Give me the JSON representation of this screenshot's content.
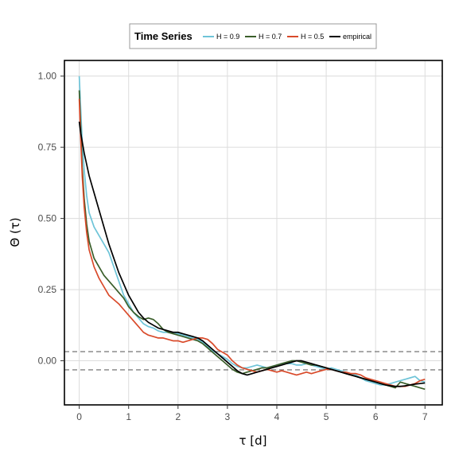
{
  "chart_data": {
    "type": "line",
    "xlabel": "τ [d]",
    "ylabel": "Θ (τ)",
    "xlim": [
      -0.3,
      7.35
    ],
    "ylim": [
      -0.155,
      1.055
    ],
    "x_ticks": [
      0,
      1,
      2,
      3,
      4,
      5,
      6,
      7
    ],
    "y_ticks": [
      0.0,
      0.25,
      0.5,
      0.75,
      1.0
    ],
    "x_tick_labels": [
      "0",
      "1",
      "2",
      "3",
      "4",
      "5",
      "6",
      "7"
    ],
    "y_tick_labels": [
      "0.00",
      "0.25",
      "0.50",
      "0.75",
      "1.00"
    ],
    "grid": true,
    "legend": {
      "title": "Time Series",
      "placement": "top-center, outside plot"
    },
    "reference_lines": [
      {
        "y": 0.032,
        "style": "dashed",
        "color": "#808080"
      },
      {
        "y": -0.032,
        "style": "dashed",
        "color": "#808080"
      }
    ],
    "series": [
      {
        "name": "H = 0.9",
        "color": "#6ec4d8",
        "x": [
          0,
          0.03,
          0.06,
          0.1,
          0.15,
          0.2,
          0.3,
          0.4,
          0.5,
          0.6,
          0.7,
          0.8,
          0.9,
          1.0,
          1.1,
          1.2,
          1.3,
          1.4,
          1.5,
          1.6,
          1.7,
          1.8,
          1.9,
          2.0,
          2.1,
          2.2,
          2.3,
          2.4,
          2.5,
          2.6,
          2.7,
          2.8,
          2.9,
          3.0,
          3.1,
          3.2,
          3.3,
          3.4,
          3.5,
          3.6,
          3.7,
          3.8,
          3.9,
          4.0,
          4.1,
          4.2,
          4.3,
          4.4,
          4.5,
          4.6,
          4.7,
          4.8,
          4.9,
          5.0,
          5.1,
          5.2,
          5.3,
          5.4,
          5.5,
          5.6,
          5.7,
          5.8,
          5.9,
          6.0,
          6.1,
          6.2,
          6.3,
          6.4,
          6.5,
          6.6,
          6.7,
          6.8,
          6.9,
          7.0
        ],
        "values": [
          1.0,
          0.88,
          0.77,
          0.67,
          0.58,
          0.52,
          0.47,
          0.44,
          0.41,
          0.38,
          0.33,
          0.28,
          0.23,
          0.2,
          0.17,
          0.15,
          0.13,
          0.12,
          0.115,
          0.105,
          0.1,
          0.1,
          0.1,
          0.095,
          0.09,
          0.085,
          0.08,
          0.075,
          0.065,
          0.05,
          0.035,
          0.025,
          0.015,
          0.005,
          -0.01,
          -0.02,
          -0.025,
          -0.025,
          -0.02,
          -0.015,
          -0.02,
          -0.025,
          -0.02,
          -0.015,
          -0.01,
          -0.01,
          -0.01,
          -0.015,
          -0.015,
          -0.01,
          -0.015,
          -0.02,
          -0.025,
          -0.03,
          -0.025,
          -0.03,
          -0.035,
          -0.04,
          -0.045,
          -0.05,
          -0.06,
          -0.07,
          -0.075,
          -0.08,
          -0.085,
          -0.085,
          -0.08,
          -0.075,
          -0.07,
          -0.065,
          -0.06,
          -0.055,
          -0.07,
          -0.075
        ]
      },
      {
        "name": "H = 0.7",
        "color": "#3a5e2a",
        "x": [
          0,
          0.03,
          0.06,
          0.1,
          0.15,
          0.2,
          0.3,
          0.4,
          0.5,
          0.6,
          0.7,
          0.8,
          0.9,
          1.0,
          1.1,
          1.2,
          1.3,
          1.4,
          1.5,
          1.6,
          1.7,
          1.8,
          1.9,
          2.0,
          2.1,
          2.2,
          2.3,
          2.4,
          2.5,
          2.6,
          2.7,
          2.8,
          2.9,
          3.0,
          3.1,
          3.2,
          3.3,
          3.4,
          3.5,
          3.6,
          3.7,
          3.8,
          3.9,
          4.0,
          4.1,
          4.2,
          4.3,
          4.4,
          4.5,
          4.6,
          4.7,
          4.8,
          4.9,
          5.0,
          5.1,
          5.2,
          5.3,
          5.4,
          5.5,
          5.6,
          5.7,
          5.8,
          5.9,
          6.0,
          6.1,
          6.2,
          6.3,
          6.4,
          6.5,
          6.6,
          6.7,
          6.8,
          6.9,
          7.0
        ],
        "values": [
          0.95,
          0.82,
          0.68,
          0.57,
          0.48,
          0.42,
          0.36,
          0.33,
          0.3,
          0.28,
          0.26,
          0.24,
          0.22,
          0.19,
          0.17,
          0.155,
          0.145,
          0.15,
          0.145,
          0.13,
          0.11,
          0.1,
          0.095,
          0.09,
          0.085,
          0.08,
          0.075,
          0.07,
          0.06,
          0.045,
          0.03,
          0.015,
          0.0,
          -0.015,
          -0.03,
          -0.04,
          -0.045,
          -0.04,
          -0.035,
          -0.03,
          -0.025,
          -0.025,
          -0.02,
          -0.015,
          -0.01,
          -0.005,
          0.0,
          0.0,
          -0.005,
          -0.01,
          -0.015,
          -0.015,
          -0.02,
          -0.025,
          -0.03,
          -0.035,
          -0.04,
          -0.045,
          -0.05,
          -0.055,
          -0.06,
          -0.065,
          -0.07,
          -0.075,
          -0.08,
          -0.085,
          -0.09,
          -0.095,
          -0.075,
          -0.08,
          -0.085,
          -0.09,
          -0.095,
          -0.1
        ]
      },
      {
        "name": "H = 0.5",
        "color": "#d94a2a",
        "x": [
          0,
          0.03,
          0.06,
          0.1,
          0.15,
          0.2,
          0.3,
          0.4,
          0.5,
          0.6,
          0.7,
          0.8,
          0.9,
          1.0,
          1.1,
          1.2,
          1.3,
          1.4,
          1.5,
          1.6,
          1.7,
          1.8,
          1.9,
          2.0,
          2.1,
          2.2,
          2.3,
          2.4,
          2.5,
          2.6,
          2.7,
          2.8,
          2.9,
          3.0,
          3.1,
          3.2,
          3.3,
          3.4,
          3.5,
          3.6,
          3.7,
          3.8,
          3.9,
          4.0,
          4.1,
          4.2,
          4.3,
          4.4,
          4.5,
          4.6,
          4.7,
          4.8,
          4.9,
          5.0,
          5.1,
          5.2,
          5.3,
          5.4,
          5.5,
          5.6,
          5.7,
          5.8,
          5.9,
          6.0,
          6.1,
          6.2,
          6.3,
          6.4,
          6.5,
          6.6,
          6.7,
          6.8,
          6.9,
          7.0
        ],
        "values": [
          0.92,
          0.78,
          0.65,
          0.54,
          0.45,
          0.39,
          0.33,
          0.29,
          0.26,
          0.23,
          0.215,
          0.2,
          0.18,
          0.16,
          0.14,
          0.12,
          0.1,
          0.09,
          0.085,
          0.08,
          0.08,
          0.075,
          0.07,
          0.07,
          0.065,
          0.07,
          0.075,
          0.08,
          0.08,
          0.075,
          0.06,
          0.04,
          0.03,
          0.02,
          0.0,
          -0.015,
          -0.025,
          -0.03,
          -0.035,
          -0.04,
          -0.035,
          -0.03,
          -0.035,
          -0.04,
          -0.035,
          -0.04,
          -0.045,
          -0.05,
          -0.045,
          -0.04,
          -0.045,
          -0.04,
          -0.035,
          -0.03,
          -0.03,
          -0.035,
          -0.04,
          -0.04,
          -0.045,
          -0.045,
          -0.05,
          -0.06,
          -0.065,
          -0.07,
          -0.075,
          -0.08,
          -0.085,
          -0.09,
          -0.09,
          -0.09,
          -0.085,
          -0.08,
          -0.07,
          -0.065
        ]
      },
      {
        "name": "empirical",
        "color": "#000000",
        "x": [
          0,
          0.03,
          0.06,
          0.1,
          0.15,
          0.2,
          0.3,
          0.4,
          0.5,
          0.6,
          0.7,
          0.8,
          0.9,
          1.0,
          1.1,
          1.2,
          1.3,
          1.4,
          1.5,
          1.6,
          1.7,
          1.8,
          1.9,
          2.0,
          2.1,
          2.2,
          2.3,
          2.4,
          2.5,
          2.6,
          2.7,
          2.8,
          2.9,
          3.0,
          3.1,
          3.2,
          3.3,
          3.4,
          3.5,
          3.6,
          3.7,
          3.8,
          3.9,
          4.0,
          4.1,
          4.2,
          4.3,
          4.4,
          4.5,
          4.6,
          4.7,
          4.8,
          4.9,
          5.0,
          5.1,
          5.2,
          5.3,
          5.4,
          5.5,
          5.6,
          5.7,
          5.8,
          5.9,
          6.0,
          6.1,
          6.2,
          6.3,
          6.4,
          6.5,
          6.6,
          6.7,
          6.8,
          6.9,
          7.0
        ],
        "values": [
          0.84,
          0.8,
          0.77,
          0.73,
          0.69,
          0.65,
          0.59,
          0.53,
          0.47,
          0.41,
          0.36,
          0.31,
          0.27,
          0.23,
          0.2,
          0.17,
          0.15,
          0.135,
          0.125,
          0.115,
          0.11,
          0.105,
          0.1,
          0.1,
          0.095,
          0.09,
          0.085,
          0.08,
          0.07,
          0.055,
          0.04,
          0.025,
          0.01,
          -0.005,
          -0.02,
          -0.035,
          -0.045,
          -0.05,
          -0.045,
          -0.04,
          -0.035,
          -0.03,
          -0.025,
          -0.02,
          -0.015,
          -0.01,
          -0.005,
          0.0,
          0.0,
          -0.005,
          -0.01,
          -0.015,
          -0.02,
          -0.025,
          -0.03,
          -0.035,
          -0.04,
          -0.045,
          -0.05,
          -0.055,
          -0.06,
          -0.065,
          -0.07,
          -0.075,
          -0.08,
          -0.085,
          -0.088,
          -0.09,
          -0.09,
          -0.088,
          -0.085,
          -0.082,
          -0.08,
          -0.078
        ]
      }
    ]
  }
}
